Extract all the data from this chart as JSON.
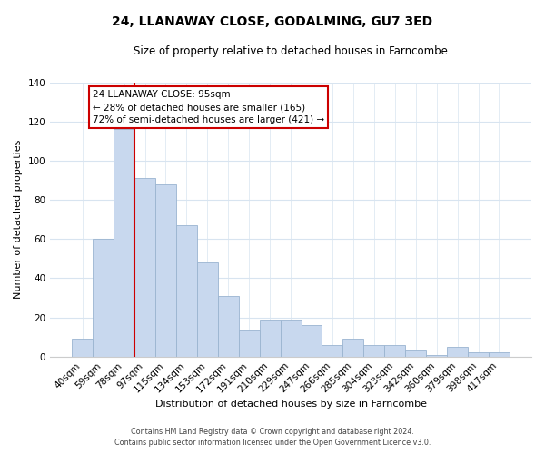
{
  "title": "24, LLANAWAY CLOSE, GODALMING, GU7 3ED",
  "subtitle": "Size of property relative to detached houses in Farncombe",
  "xlabel": "Distribution of detached houses by size in Farncombe",
  "ylabel": "Number of detached properties",
  "bar_color": "#c8d8ee",
  "bar_edge_color": "#9ab4d0",
  "categories": [
    "40sqm",
    "59sqm",
    "78sqm",
    "97sqm",
    "115sqm",
    "134sqm",
    "153sqm",
    "172sqm",
    "191sqm",
    "210sqm",
    "229sqm",
    "247sqm",
    "266sqm",
    "285sqm",
    "304sqm",
    "323sqm",
    "342sqm",
    "360sqm",
    "379sqm",
    "398sqm",
    "417sqm"
  ],
  "values": [
    9,
    60,
    116,
    91,
    88,
    67,
    48,
    31,
    14,
    19,
    19,
    16,
    6,
    9,
    6,
    6,
    3,
    1,
    5,
    2,
    2
  ],
  "ylim": [
    0,
    140
  ],
  "yticks": [
    0,
    20,
    40,
    60,
    80,
    100,
    120,
    140
  ],
  "vline_color": "#cc0000",
  "annotation_title": "24 LLANAWAY CLOSE: 95sqm",
  "annotation_line1": "← 28% of detached houses are smaller (165)",
  "annotation_line2": "72% of semi-detached houses are larger (421) →",
  "footer_line1": "Contains HM Land Registry data © Crown copyright and database right 2024.",
  "footer_line2": "Contains public sector information licensed under the Open Government Licence v3.0.",
  "background_color": "#ffffff",
  "grid_color": "#d8e4f0"
}
